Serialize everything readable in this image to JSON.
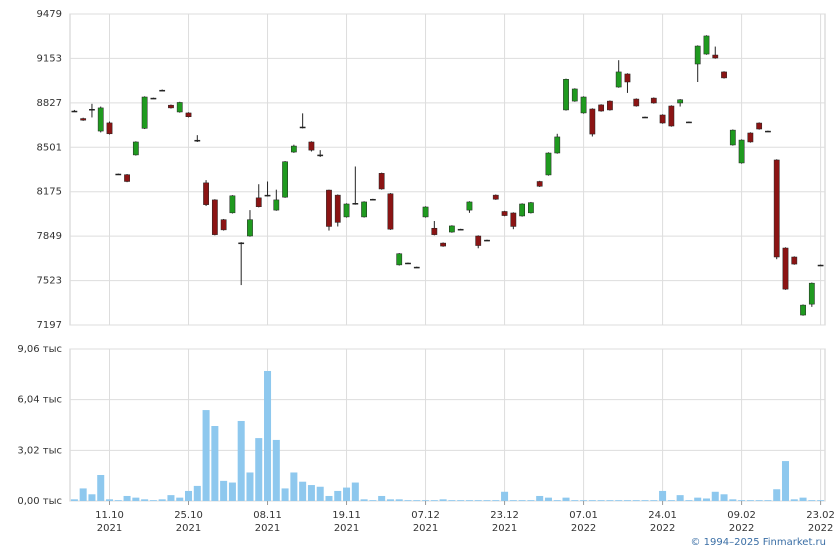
{
  "chart_data": [
    {
      "type": "candlestick",
      "open": [
        8767,
        8712,
        8780,
        8620,
        8680,
        8305,
        8300,
        8445,
        8640,
        8862,
        8920,
        8810,
        8760,
        8753,
        8553,
        8240,
        8115,
        7970,
        8020,
        7800,
        7850,
        8130,
        8150,
        8040,
        8135,
        8466,
        8650,
        8540,
        8445,
        8187,
        8150,
        7990,
        8090,
        7990,
        8120,
        8310,
        8160,
        7638,
        7652,
        7622,
        7990,
        7907,
        7798,
        7879,
        7900,
        8040,
        7850,
        7820,
        8150,
        8030,
        8019,
        7997,
        8020,
        8250,
        8298,
        8459,
        8775,
        8840,
        8753,
        8782,
        8812,
        8840,
        8943,
        9039,
        8855,
        8723,
        8862,
        8738,
        8804,
        8826,
        8687,
        9112,
        9185,
        9178,
        9054,
        8518,
        8386,
        8606,
        8679,
        8620,
        8408,
        7762,
        7696,
        7270,
        7350,
        7637
      ],
      "high": [
        8775,
        8718,
        8820,
        8800,
        8690,
        8308,
        8305,
        8545,
        8875,
        8865,
        8925,
        8815,
        8835,
        8758,
        8590,
        8260,
        8120,
        7975,
        8150,
        7805,
        8040,
        8230,
        8250,
        8190,
        8400,
        8520,
        8750,
        8545,
        8480,
        8190,
        8155,
        8090,
        8360,
        8105,
        8123,
        8315,
        8165,
        7725,
        7655,
        7625,
        8068,
        7960,
        7803,
        7929,
        7903,
        8105,
        7855,
        7823,
        8155,
        8035,
        8024,
        8090,
        8100,
        8255,
        8464,
        8600,
        9005,
        8934,
        8875,
        8787,
        8817,
        8845,
        9140,
        9044,
        8860,
        8726,
        8867,
        8743,
        8809,
        8855,
        8690,
        9249,
        9323,
        9240,
        9059,
        8632,
        8559,
        8611,
        8684,
        8623,
        8413,
        7767,
        7701,
        7348,
        7509,
        7640
      ],
      "low": [
        8760,
        8695,
        8720,
        8610,
        8595,
        8300,
        8245,
        8440,
        8635,
        8858,
        8915,
        8785,
        8755,
        8720,
        8540,
        8070,
        7855,
        7890,
        8015,
        7490,
        7845,
        8060,
        8140,
        8035,
        8130,
        8460,
        8640,
        8470,
        8430,
        7890,
        7920,
        7985,
        8080,
        7985,
        8115,
        8190,
        7895,
        7633,
        7647,
        7617,
        7985,
        7855,
        7771,
        7874,
        7895,
        8020,
        7760,
        7815,
        8115,
        7995,
        7900,
        7992,
        8015,
        8210,
        8293,
        8454,
        8770,
        8835,
        8748,
        8580,
        8762,
        8770,
        8938,
        8900,
        8799,
        8718,
        8821,
        8674,
        8652,
        8800,
        8682,
        8980,
        9180,
        9151,
        9005,
        8513,
        8381,
        8535,
        8630,
        8615,
        7680,
        7455,
        7639,
        7265,
        7330,
        7632
      ],
      "close": [
        8767,
        8700,
        8780,
        8790,
        8600,
        8305,
        8250,
        8540,
        8870,
        8862,
        8920,
        8790,
        8830,
        8725,
        8553,
        8080,
        7860,
        7895,
        8145,
        7800,
        7970,
        8065,
        8150,
        8115,
        8395,
        8510,
        8650,
        8480,
        8445,
        7920,
        7950,
        8085,
        8090,
        8100,
        8120,
        8195,
        7900,
        7720,
        7652,
        7622,
        8063,
        7860,
        7776,
        7924,
        7900,
        8100,
        7780,
        7820,
        8120,
        8000,
        7920,
        8085,
        8095,
        8215,
        8459,
        8577,
        9000,
        8929,
        8870,
        8598,
        8767,
        8775,
        9054,
        8980,
        8804,
        8723,
        8826,
        8679,
        8657,
        8850,
        8687,
        9244,
        9318,
        9156,
        9010,
        8627,
        8554,
        8540,
        8635,
        8620,
        7696,
        7460,
        7644,
        7343,
        7504,
        7637
      ],
      "up_color": "#1f9a1f",
      "down_color": "#8b1414",
      "doji_color": "#222222",
      "ylim": [
        7197,
        9479
      ],
      "yticks": [
        7197,
        7523,
        7849,
        8175,
        8501,
        8827,
        9153,
        9479
      ],
      "grid": true
    },
    {
      "type": "bar",
      "values": [
        0.1,
        0.75,
        0.4,
        1.55,
        0.1,
        0.05,
        0.3,
        0.2,
        0.1,
        0.05,
        0.1,
        0.35,
        0.2,
        0.6,
        0.9,
        5.42,
        4.47,
        1.2,
        1.1,
        4.77,
        1.7,
        3.75,
        7.75,
        3.64,
        0.75,
        1.7,
        1.15,
        0.95,
        0.85,
        0.3,
        0.6,
        0.8,
        1.1,
        0.1,
        0.05,
        0.3,
        0.1,
        0.1,
        0.05,
        0.05,
        0.05,
        0.05,
        0.1,
        0.05,
        0.05,
        0.05,
        0.05,
        0.05,
        0.05,
        0.55,
        0.05,
        0.05,
        0.05,
        0.3,
        0.2,
        0.05,
        0.2,
        0.05,
        0.05,
        0.05,
        0.05,
        0.05,
        0.05,
        0.05,
        0.05,
        0.05,
        0.05,
        0.6,
        0.05,
        0.35,
        0.05,
        0.2,
        0.15,
        0.55,
        0.4,
        0.1,
        0.05,
        0.05,
        0.05,
        0.05,
        0.7,
        2.38,
        0.1,
        0.2,
        0.05,
        0.05
      ],
      "categories": [
        null,
        null,
        null,
        null,
        [
          "11.10",
          "2021"
        ],
        null,
        null,
        null,
        null,
        null,
        null,
        null,
        null,
        [
          "25.10",
          "2021"
        ],
        null,
        null,
        null,
        null,
        null,
        null,
        null,
        null,
        [
          "08.11",
          "2021"
        ],
        null,
        null,
        null,
        null,
        null,
        null,
        null,
        null,
        [
          "19.11",
          "2021"
        ],
        null,
        null,
        null,
        null,
        null,
        null,
        null,
        null,
        [
          "07.12",
          "2021"
        ],
        null,
        null,
        null,
        null,
        null,
        null,
        null,
        null,
        [
          "23.12",
          "2021"
        ],
        null,
        null,
        null,
        null,
        null,
        null,
        null,
        null,
        [
          "07.01",
          "2022"
        ],
        null,
        null,
        null,
        null,
        null,
        null,
        null,
        null,
        [
          "24.01",
          "2022"
        ],
        null,
        null,
        null,
        null,
        null,
        null,
        null,
        null,
        [
          "09.02",
          "2022"
        ],
        null,
        null,
        null,
        null,
        null,
        null,
        null,
        null,
        [
          "23.02",
          "2022"
        ]
      ],
      "color": "#8ec8ee",
      "ylim": [
        0,
        9.06
      ],
      "yticks": [
        {
          "value": 0,
          "label": "0,00 тыс"
        },
        {
          "value": 3.02,
          "label": "3,02 тыс"
        },
        {
          "value": 6.04,
          "label": "6,04 тыс"
        },
        {
          "value": 9.06,
          "label": "9,06 тыс"
        }
      ],
      "grid": true
    }
  ],
  "footer": "© 1994–2025 Finmarket.ru"
}
